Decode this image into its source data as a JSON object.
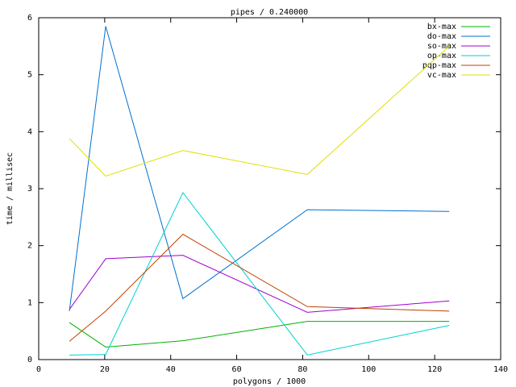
{
  "chart_data": {
    "type": "line",
    "title": "pipes / 0.240000",
    "x_label": "polygons / 1000",
    "y_label": "time / millisec",
    "x": [
      9.3,
      20.3,
      43.7,
      81.4,
      124.4
    ],
    "series": [
      {
        "name": "bx-max",
        "color": "#00b000",
        "values": [
          0.65,
          0.22,
          0.33,
          0.67,
          0.67
        ]
      },
      {
        "name": "do-max",
        "color": "#0070d0",
        "values": [
          0.85,
          5.85,
          1.07,
          2.63,
          2.6
        ]
      },
      {
        "name": "so-max",
        "color": "#a000d0",
        "values": [
          0.88,
          1.77,
          1.83,
          0.83,
          1.03
        ]
      },
      {
        "name": "op-max",
        "color": "#00d0d0",
        "values": [
          0.08,
          0.09,
          2.93,
          0.08,
          0.6
        ]
      },
      {
        "name": "pqp-max",
        "color": "#c04000",
        "values": [
          0.32,
          0.85,
          2.2,
          0.93,
          0.85
        ]
      },
      {
        "name": "vc-max",
        "color": "#e0e000",
        "values": [
          3.88,
          3.22,
          3.67,
          3.25,
          5.5
        ]
      }
    ],
    "xlim": [
      0,
      140
    ],
    "xticks": [
      0,
      20,
      40,
      60,
      80,
      100,
      120,
      140
    ],
    "ylim": [
      0,
      6
    ],
    "yticks": [
      0,
      1,
      2,
      3,
      4,
      5,
      6
    ],
    "grid": false,
    "legend": "top-right"
  }
}
